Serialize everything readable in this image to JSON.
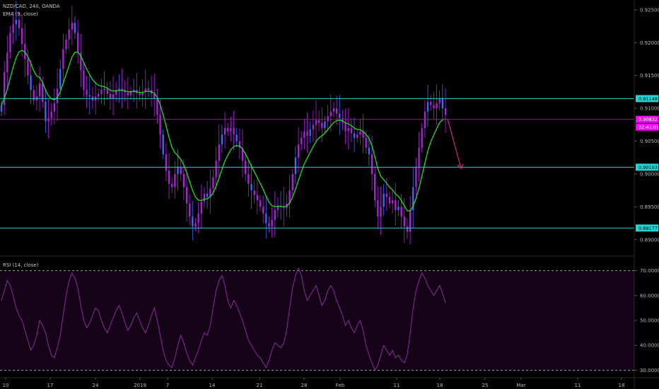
{
  "header": {
    "symbol_line": "NZD/CAD, 240, OANDA",
    "ema_line": "EMA (9, close)",
    "rsi_line": "RSI (14, close)"
  },
  "colors": {
    "background": "#000000",
    "candle": "#b020e0",
    "candle_alt": "#3a6cff",
    "ema": "#22dd22",
    "level_line": "#1fd4d4",
    "current_line": "#9a1e8a",
    "price_tag": "#ff00ff",
    "arrow": "#ff2a8a",
    "rsi_fill": "#150417",
    "rsi_line": "#8b2aa0"
  },
  "chart_data": [
    {
      "type": "candlestick",
      "name": "price",
      "ylim": [
        0.8875,
        0.9265
      ],
      "y_ticks": [
        "0.92500",
        "0.92000",
        "0.91500",
        "0.91000",
        "0.90500",
        "0.90000",
        "0.89500",
        "0.89000"
      ],
      "y_tick_values": [
        0.925,
        0.92,
        0.915,
        0.91,
        0.905,
        0.9,
        0.895,
        0.89
      ],
      "x_labels": [
        "10",
        "17",
        "24",
        "2019",
        "7",
        "14",
        "21",
        "28",
        "Feb",
        "11",
        "18",
        "25",
        "Mar",
        "11",
        "18"
      ],
      "levels": [
        {
          "value": 0.91148,
          "label": "0.91148"
        },
        {
          "value": 0.90103,
          "label": "0.90103"
        },
        {
          "value": 0.89177,
          "label": "0.89177"
        }
      ],
      "current": {
        "value": 0.90832,
        "label": "0.90832",
        "countdown": "02:41:01"
      },
      "series": [
        0.9105,
        0.9155,
        0.9185,
        0.9215,
        0.9228,
        0.9235,
        0.9222,
        0.9198,
        0.9175,
        0.915,
        0.9128,
        0.9112,
        0.9118,
        0.9138,
        0.911,
        0.908,
        0.9085,
        0.9095,
        0.9108,
        0.913,
        0.916,
        0.919,
        0.9205,
        0.922,
        0.923,
        0.9215,
        0.9185,
        0.9158,
        0.9128,
        0.912,
        0.9118,
        0.9112,
        0.9118,
        0.9122,
        0.9128,
        0.913,
        0.9122,
        0.9115,
        0.9121,
        0.9128,
        0.913,
        0.9128,
        0.9124,
        0.912,
        0.9125,
        0.9128,
        0.9123,
        0.912,
        0.9125,
        0.913,
        0.9128,
        0.9122,
        0.9115,
        0.909,
        0.906,
        0.903,
        0.9005,
        0.8985,
        0.898,
        0.9,
        0.901,
        0.9,
        0.898,
        0.8955,
        0.8935,
        0.892,
        0.8925,
        0.894,
        0.8958,
        0.897,
        0.8965,
        0.8978,
        0.8995,
        0.902,
        0.9045,
        0.906,
        0.907,
        0.9065,
        0.907,
        0.906,
        0.905,
        0.904,
        0.902,
        0.9,
        0.8985,
        0.8975,
        0.8968,
        0.896,
        0.895,
        0.894,
        0.8925,
        0.892,
        0.893,
        0.8945,
        0.8952,
        0.895,
        0.8948,
        0.8955,
        0.8975,
        0.9,
        0.9025,
        0.9045,
        0.9055,
        0.9065,
        0.9058,
        0.9068,
        0.9075,
        0.9082,
        0.9078,
        0.907,
        0.908,
        0.9088,
        0.9095,
        0.91,
        0.9092,
        0.9085,
        0.9078,
        0.9065,
        0.907,
        0.9062,
        0.9055,
        0.906,
        0.9065,
        0.9055,
        0.904,
        0.903,
        0.9,
        0.896,
        0.8935,
        0.895,
        0.897,
        0.8965,
        0.8955,
        0.896,
        0.8945,
        0.895,
        0.8935,
        0.892,
        0.8912,
        0.8945,
        0.898,
        0.901,
        0.904,
        0.907,
        0.9095,
        0.911,
        0.9105,
        0.91,
        0.9108,
        0.9115,
        0.91,
        0.909
      ]
    },
    {
      "type": "line",
      "name": "RSI",
      "ylim": [
        27,
        75
      ],
      "y_ticks": [
        "70.0000",
        "60.0000",
        "50.0000",
        "40.0000",
        "30.0000"
      ],
      "y_tick_values": [
        70,
        60,
        50,
        40,
        30
      ],
      "bands": [
        70,
        30
      ],
      "values": [
        58,
        62,
        66,
        64,
        60,
        55,
        52,
        50,
        46,
        42,
        38,
        40,
        44,
        50,
        48,
        45,
        40,
        36,
        35,
        39,
        44,
        52,
        60,
        66,
        69,
        67,
        63,
        56,
        50,
        47,
        49,
        52,
        55,
        54,
        50,
        47,
        45,
        48,
        51,
        54,
        56,
        53,
        49,
        46,
        48,
        51,
        53,
        50,
        47,
        45,
        48,
        52,
        55,
        50,
        44,
        38,
        34,
        32,
        31,
        35,
        40,
        44,
        41,
        37,
        34,
        32,
        35,
        38,
        42,
        45,
        44,
        48,
        55,
        62,
        66,
        68,
        64,
        58,
        55,
        58,
        56,
        53,
        50,
        46,
        42,
        40,
        38,
        36,
        35,
        33,
        31,
        34,
        38,
        41,
        40,
        39,
        41,
        46,
        55,
        63,
        68,
        71,
        68,
        62,
        58,
        60,
        62,
        64,
        60,
        56,
        58,
        62,
        64,
        62,
        58,
        55,
        52,
        48,
        50,
        47,
        45,
        48,
        50,
        46,
        40,
        36,
        33,
        30,
        32,
        36,
        40,
        38,
        36,
        38,
        35,
        36,
        34,
        33,
        36,
        45,
        55,
        62,
        66,
        69,
        67,
        64,
        62,
        60,
        62,
        64,
        61,
        57
      ]
    }
  ]
}
